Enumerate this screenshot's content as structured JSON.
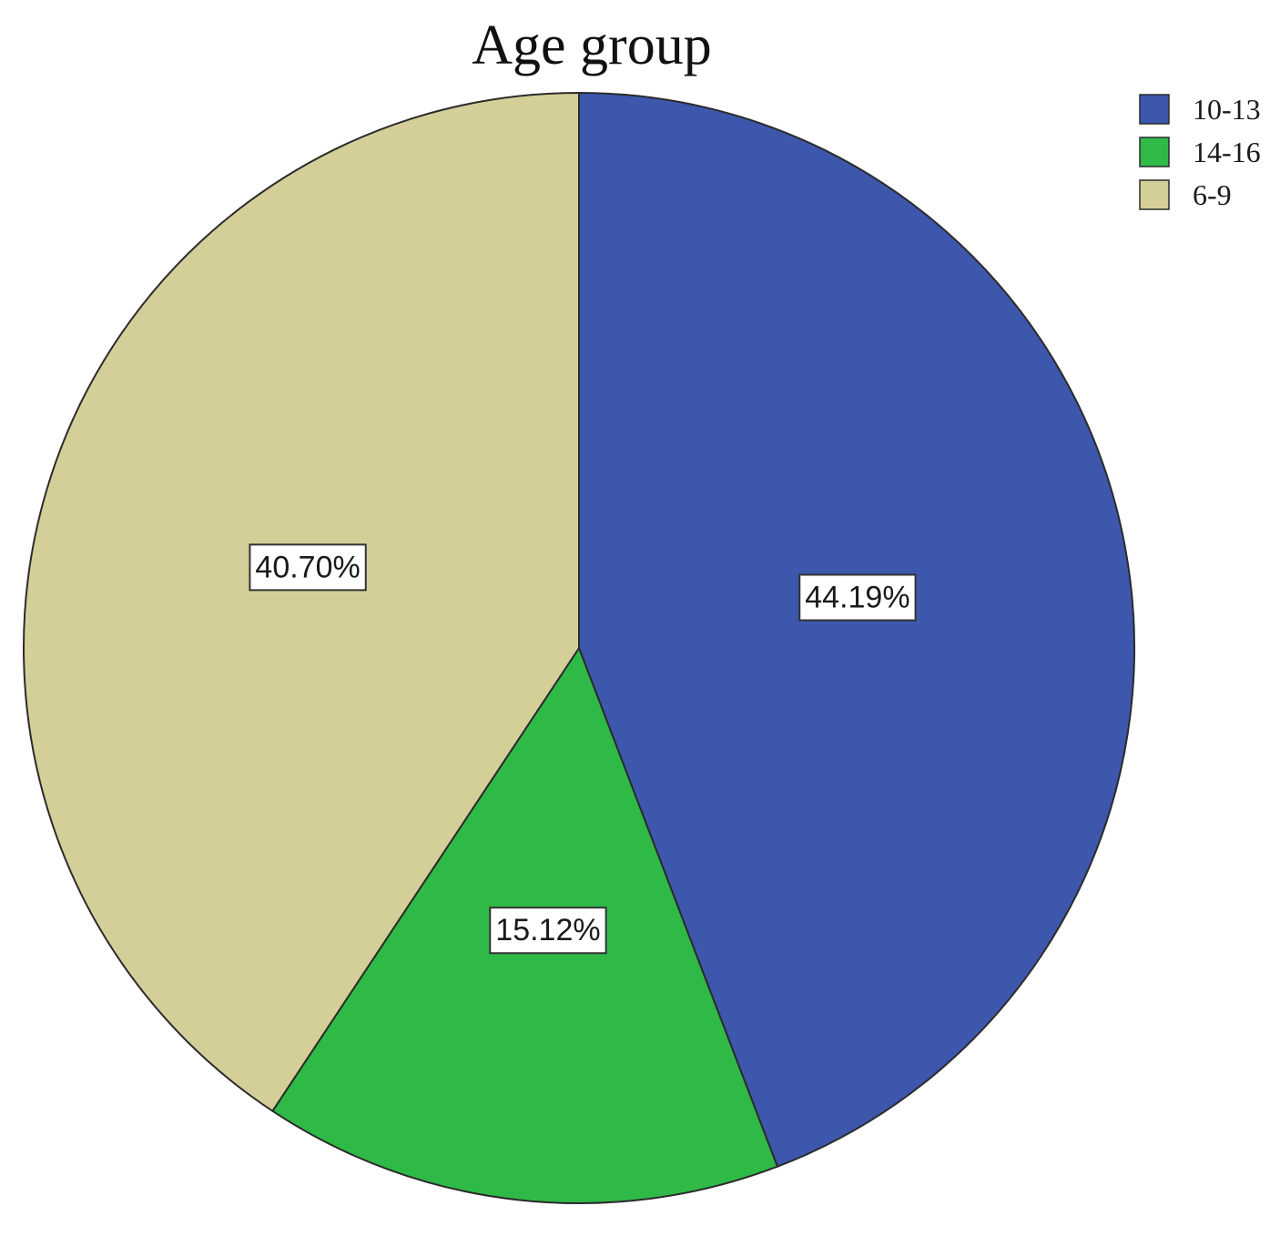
{
  "chart_data": {
    "type": "pie",
    "title": "Age group",
    "slices": [
      {
        "label": "10-13",
        "value": 44.19,
        "display": "44.19%",
        "color": "#3d57ad"
      },
      {
        "label": "14-16",
        "value": 15.12,
        "display": "15.12%",
        "color": "#2fba48"
      },
      {
        "label": "6-9",
        "value": 40.7,
        "display": "40.70%",
        "color": "#d4cf98"
      }
    ],
    "start_angle": "12 o'clock",
    "direction": "clockwise",
    "legend": {
      "placement": "top-right",
      "entries": [
        "10-13",
        "14-16",
        "6-9"
      ]
    }
  }
}
